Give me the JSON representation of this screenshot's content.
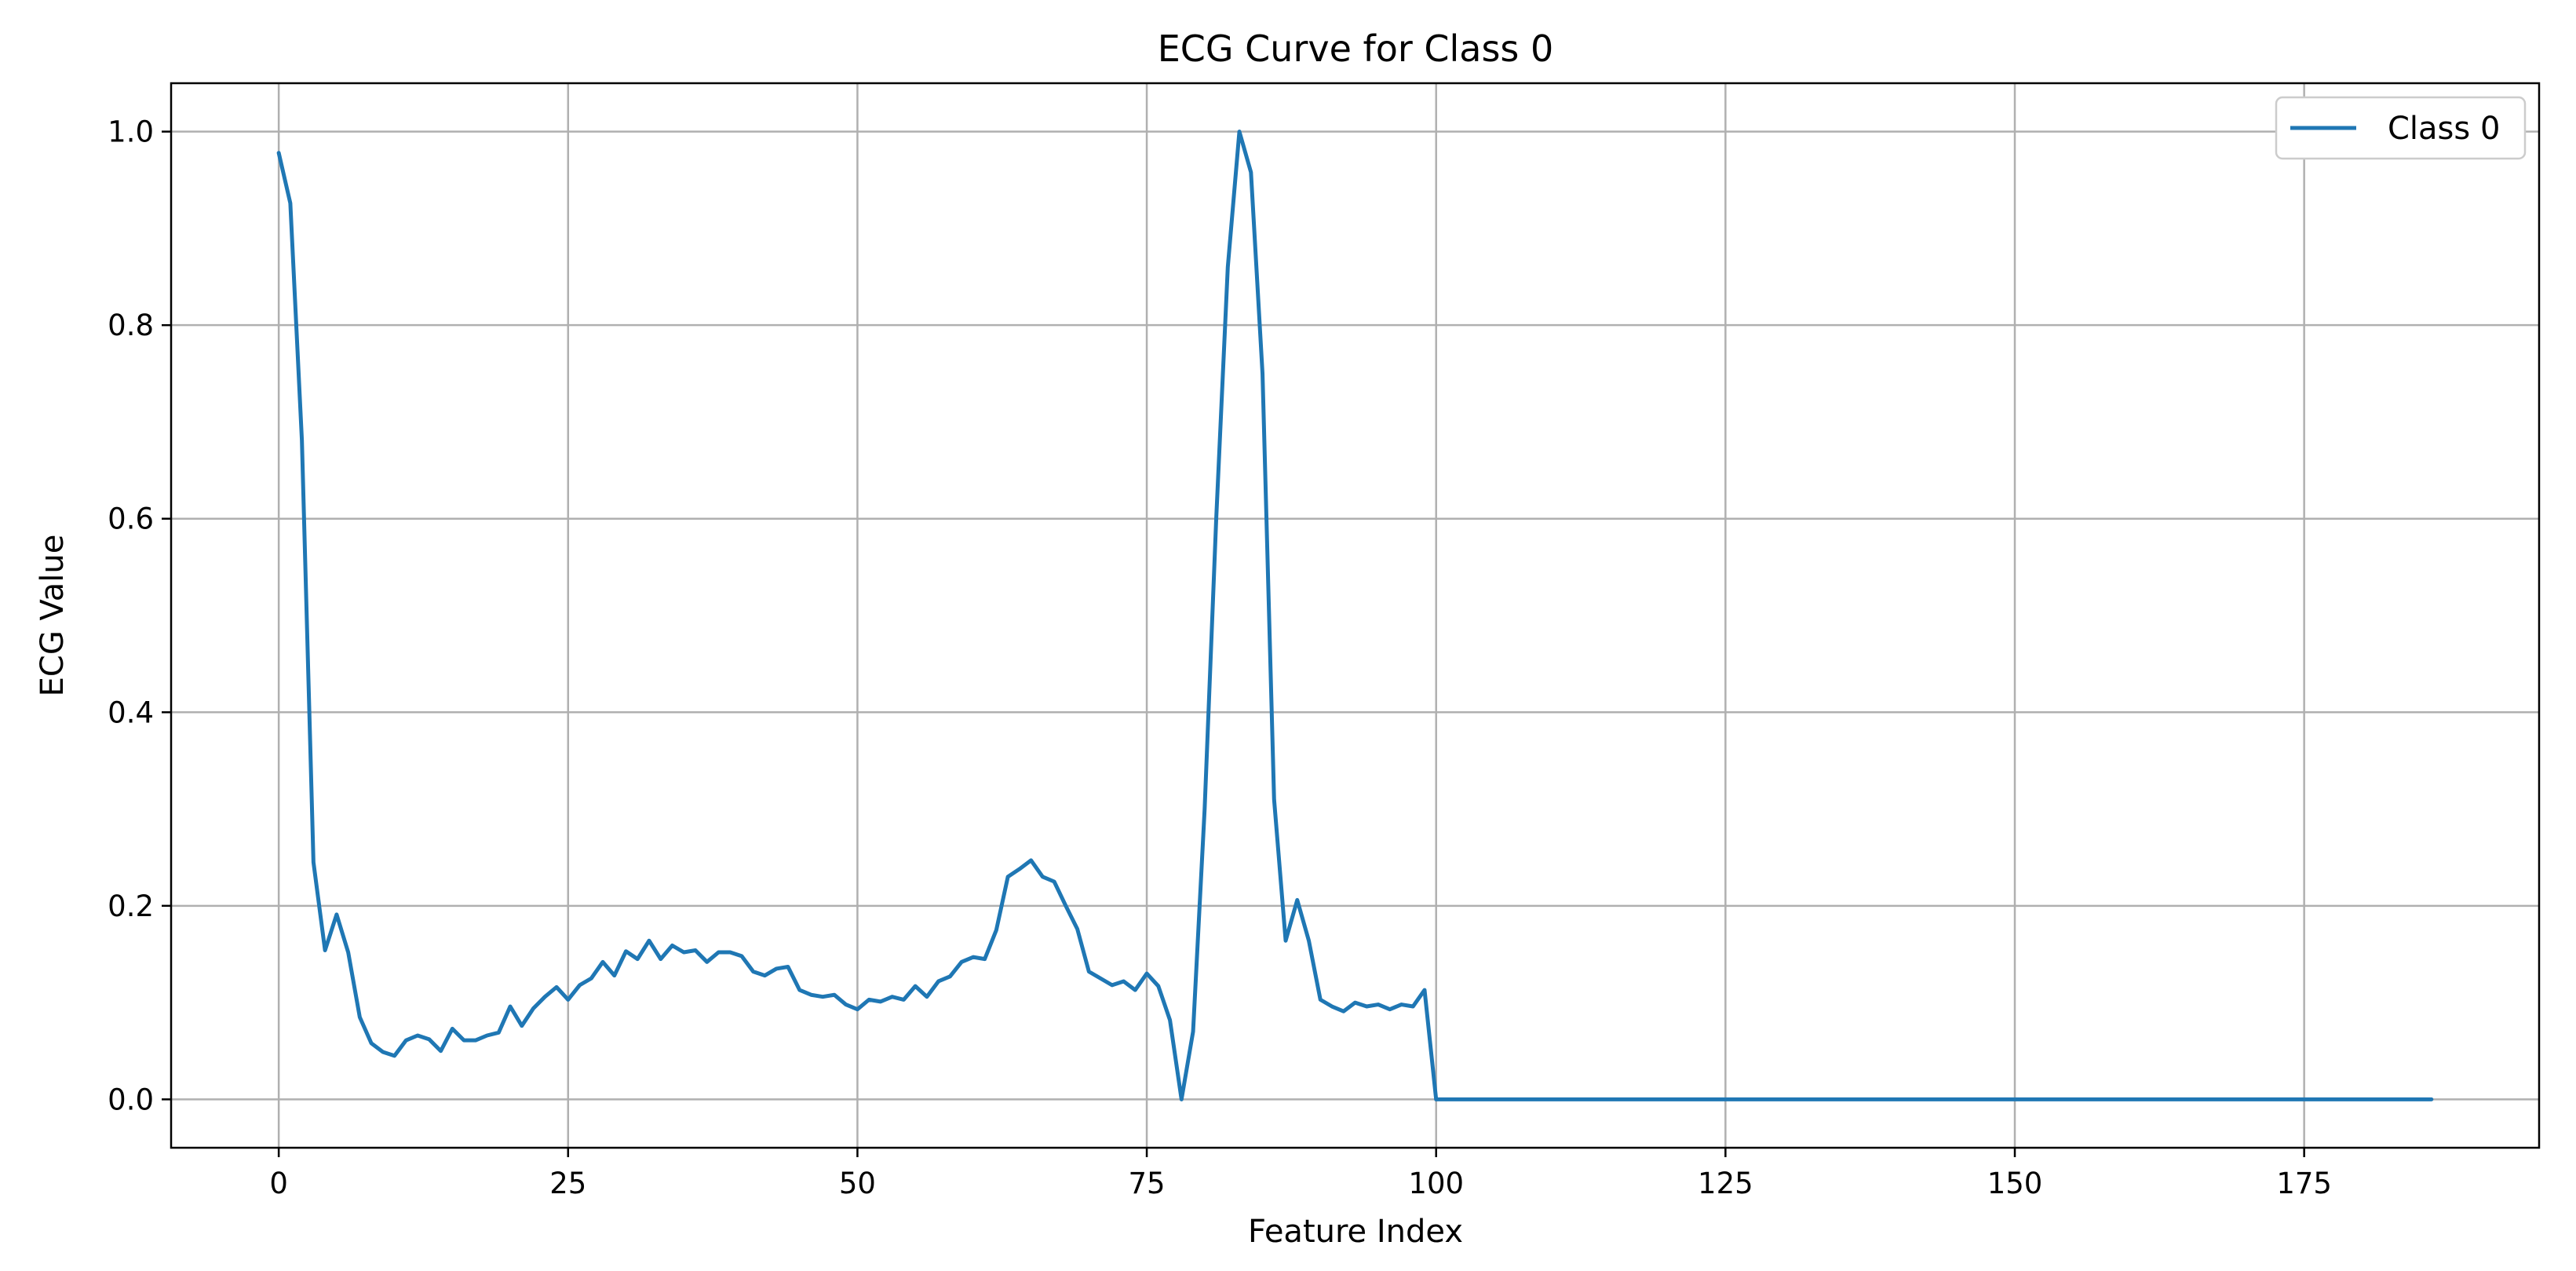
{
  "chart_data": {
    "type": "line",
    "title": "ECG Curve for Class 0",
    "xlabel": "Feature Index",
    "ylabel": "ECG Value",
    "xlim": [
      -9.3,
      195.3
    ],
    "ylim": [
      -0.05,
      1.05
    ],
    "xticks": [
      0,
      25,
      50,
      75,
      100,
      125,
      150,
      175
    ],
    "yticks": [
      0.0,
      0.2,
      0.4,
      0.6,
      0.8,
      1.0
    ],
    "xtick_labels": [
      "0",
      "25",
      "50",
      "75",
      "100",
      "125",
      "150",
      "175"
    ],
    "ytick_labels": [
      "0.0",
      "0.2",
      "0.4",
      "0.6",
      "0.8",
      "1.0"
    ],
    "grid": true,
    "legend_position": "top-right",
    "series": [
      {
        "name": "Class 0",
        "color": "#1f77b4",
        "x_start": 0,
        "x_step": 1,
        "values": [
          0.978,
          0.926,
          0.681,
          0.245,
          0.154,
          0.191,
          0.152,
          0.085,
          0.058,
          0.049,
          0.045,
          0.061,
          0.066,
          0.062,
          0.05,
          0.073,
          0.061,
          0.061,
          0.066,
          0.069,
          0.096,
          0.076,
          0.094,
          0.106,
          0.116,
          0.103,
          0.118,
          0.125,
          0.142,
          0.128,
          0.153,
          0.145,
          0.164,
          0.145,
          0.159,
          0.152,
          0.154,
          0.142,
          0.152,
          0.152,
          0.148,
          0.132,
          0.128,
          0.135,
          0.137,
          0.113,
          0.108,
          0.106,
          0.108,
          0.098,
          0.093,
          0.103,
          0.101,
          0.106,
          0.103,
          0.117,
          0.106,
          0.122,
          0.127,
          0.142,
          0.147,
          0.145,
          0.175,
          0.23,
          0.238,
          0.247,
          0.23,
          0.225,
          0.2,
          0.176,
          0.132,
          0.125,
          0.118,
          0.122,
          0.113,
          0.13,
          0.117,
          0.082,
          0.0,
          0.07,
          0.3,
          0.6,
          0.86,
          1.0,
          0.958,
          0.75,
          0.31,
          0.164,
          0.206,
          0.164,
          0.103,
          0.096,
          0.091,
          0.1,
          0.096,
          0.098,
          0.093,
          0.098,
          0.096,
          0.113,
          0.0,
          0.0,
          0.0,
          0.0,
          0.0,
          0.0,
          0.0,
          0.0,
          0.0,
          0.0,
          0.0,
          0.0,
          0.0,
          0.0,
          0.0,
          0.0,
          0.0,
          0.0,
          0.0,
          0.0,
          0.0,
          0.0,
          0.0,
          0.0,
          0.0,
          0.0,
          0.0,
          0.0,
          0.0,
          0.0,
          0.0,
          0.0,
          0.0,
          0.0,
          0.0,
          0.0,
          0.0,
          0.0,
          0.0,
          0.0,
          0.0,
          0.0,
          0.0,
          0.0,
          0.0,
          0.0,
          0.0,
          0.0,
          0.0,
          0.0,
          0.0,
          0.0,
          0.0,
          0.0,
          0.0,
          0.0,
          0.0,
          0.0,
          0.0,
          0.0,
          0.0,
          0.0,
          0.0,
          0.0,
          0.0,
          0.0,
          0.0,
          0.0,
          0.0,
          0.0,
          0.0,
          0.0,
          0.0,
          0.0,
          0.0,
          0.0,
          0.0,
          0.0,
          0.0,
          0.0,
          0.0,
          0.0,
          0.0,
          0.0,
          0.0,
          0.0,
          0.0
        ]
      }
    ]
  }
}
